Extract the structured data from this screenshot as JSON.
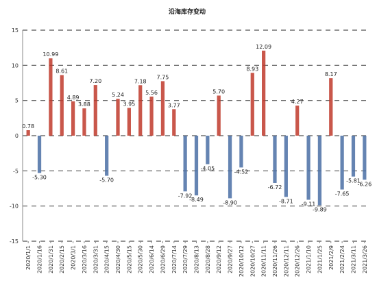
{
  "chart_data": {
    "type": "bar",
    "title": "沿海库存变动",
    "xlabel": "",
    "ylabel": "",
    "ylim": [
      -15,
      15
    ],
    "yticks": [
      -15,
      -10,
      -5,
      0,
      5,
      10,
      15
    ],
    "grid": "dashed horizontal",
    "legend": "none",
    "colors": {
      "positive": "#c0392b",
      "negative": "#4a6fa5",
      "grid": "#555555"
    },
    "categories": [
      "2020/1/1",
      "2020/1/16",
      "2020/1/31",
      "2020/2/15",
      "2020/3/1",
      "2020/3/16",
      "2020/3/31",
      "2020/4/15",
      "2020/4/30",
      "2020/5/15",
      "2020/5/30",
      "2020/6/14",
      "2020/6/29",
      "2020/7/14",
      "2020/7/29",
      "2020/8/13",
      "2020/8/28",
      "2020/9/12",
      "2020/9/27",
      "2020/10/12",
      "2020/10/27",
      "2020/11/11",
      "2020/11/26",
      "2020/12/11",
      "2020/12/26",
      "2021/1/10",
      "2021/1/25",
      "2021/2/9",
      "2021/2/24",
      "2021/3/11",
      "2021/3/26"
    ],
    "values": [
      0.78,
      -5.3,
      10.99,
      8.61,
      4.89,
      3.88,
      7.2,
      -5.7,
      5.24,
      3.95,
      7.18,
      5.56,
      7.75,
      3.77,
      -7.92,
      -8.49,
      -4.05,
      5.7,
      -8.9,
      -4.52,
      8.93,
      12.09,
      -6.72,
      -8.71,
      4.27,
      -9.11,
      -9.89,
      8.17,
      -7.65,
      -5.81,
      -6.26
    ],
    "value_labels": [
      "0.78",
      "-5.30",
      "10.99",
      "8.61",
      "4.89",
      "3.88",
      "7.20",
      "-5.70",
      "5.24",
      "3.95",
      "7.18",
      "5.56",
      "7.75",
      "3.77",
      "-7.92",
      "-8.49",
      "-4.05",
      "5.70",
      "-8.90",
      "-4.52",
      "8.93",
      "12.09",
      "-6.72",
      "-8.71",
      "4.27",
      "-9.11",
      "-9.89",
      "8.17",
      "-7.65",
      "-5.81",
      "-6.26"
    ]
  }
}
